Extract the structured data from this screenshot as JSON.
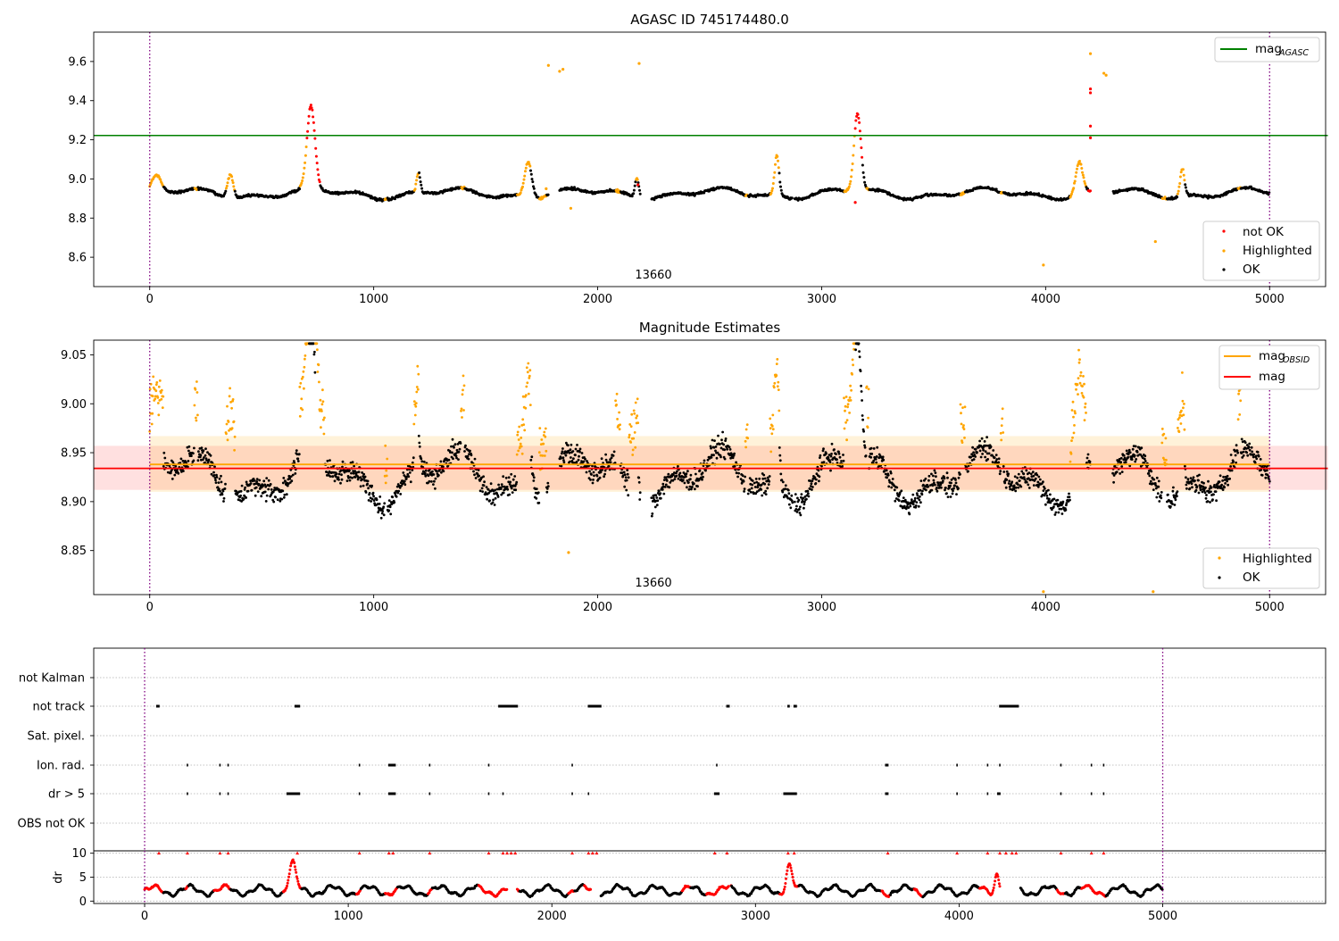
{
  "colors": {
    "ok": "#000000",
    "highlighted": "#ffa500",
    "not_ok": "#ff0000",
    "mag_agasc": "#008000",
    "mag_obsid": "#ffa500",
    "mag": "#ff0000",
    "obs_boundary": "#800080"
  },
  "chart_data": [
    {
      "type": "scatter",
      "title": "AGASC ID 745174480.0",
      "xlim": [
        -250,
        5250
      ],
      "ylim": [
        8.45,
        9.75
      ],
      "xticks": [
        0,
        1000,
        2000,
        3000,
        4000,
        5000
      ],
      "xtick_labels": [
        "0",
        "1000",
        "2000",
        "3000",
        "4000",
        "5000"
      ],
      "yticks": [
        8.6,
        8.8,
        9.0,
        9.2,
        9.4,
        9.6
      ],
      "ytick_labels": [
        "8.6",
        "8.8",
        "9.0",
        "9.2",
        "9.4",
        "9.6"
      ],
      "obsid_label": "13660",
      "obs_boundaries": [
        0,
        5000
      ],
      "hlines": [
        {
          "name": "mag_AGASC",
          "y": 9.222,
          "xmax": 5260
        }
      ],
      "legend_lines": [
        {
          "label": "mag",
          "sub": "AGASC"
        }
      ],
      "legend_points": [
        "not OK",
        "Highlighted",
        "OK"
      ],
      "series": [
        {
          "name": "OK",
          "curve": "baseline",
          "x": [
            0,
            5000
          ]
        },
        {
          "name": "Highlighted",
          "segments": [
            [
              0,
              60
            ],
            [
              200,
              215
            ],
            [
              340,
              380
            ],
            [
              670,
              710
            ],
            [
              1050,
              1060
            ],
            [
              1180,
              1200
            ],
            [
              1390,
              1405
            ],
            [
              1640,
              1700
            ],
            [
              1740,
              1770
            ],
            [
              2080,
              2100
            ],
            [
              2170,
              2180
            ],
            [
              2660,
              2670
            ],
            [
              2770,
              2810
            ],
            [
              3100,
              3150
            ],
            [
              3200,
              3210
            ],
            [
              3620,
              3640
            ],
            [
              3800,
              3810
            ],
            [
              4110,
              4180
            ],
            [
              4520,
              4540
            ],
            [
              4590,
              4620
            ],
            [
              4860,
              4870
            ]
          ]
        },
        {
          "name": "not OK",
          "segments": [
            [
              700,
              760
            ],
            [
              3150,
              3180
            ],
            [
              4190,
              4200
            ]
          ]
        }
      ],
      "outliers": [
        {
          "x": 1780,
          "y": 9.58,
          "s": "Highlighted"
        },
        {
          "x": 1830,
          "y": 9.55,
          "s": "Highlighted"
        },
        {
          "x": 1845,
          "y": 9.56,
          "s": "Highlighted"
        },
        {
          "x": 2185,
          "y": 9.59,
          "s": "Highlighted"
        },
        {
          "x": 4200,
          "y": 9.64,
          "s": "Highlighted"
        },
        {
          "x": 4260,
          "y": 9.54,
          "s": "Highlighted"
        },
        {
          "x": 4270,
          "y": 9.53,
          "s": "Highlighted"
        },
        {
          "x": 4200,
          "y": 9.46,
          "s": "not OK"
        },
        {
          "x": 4200,
          "y": 9.44,
          "s": "not OK"
        },
        {
          "x": 4200,
          "y": 9.27,
          "s": "not OK"
        },
        {
          "x": 4200,
          "y": 9.21,
          "s": "not OK"
        },
        {
          "x": 3150,
          "y": 8.88,
          "s": "not OK"
        },
        {
          "x": 2180,
          "y": 8.97,
          "s": "not OK"
        },
        {
          "x": 3990,
          "y": 8.56,
          "s": "Highlighted"
        },
        {
          "x": 4490,
          "y": 8.68,
          "s": "Highlighted"
        },
        {
          "x": 1880,
          "y": 8.85,
          "s": "Highlighted"
        },
        {
          "x": 1770,
          "y": 8.95,
          "s": "Highlighted"
        }
      ]
    },
    {
      "type": "scatter",
      "title": "Magnitude Estimates",
      "xlim": [
        -250,
        5250
      ],
      "ylim": [
        8.805,
        9.065
      ],
      "xticks": [
        0,
        1000,
        2000,
        3000,
        4000,
        5000
      ],
      "xtick_labels": [
        "0",
        "1000",
        "2000",
        "3000",
        "4000",
        "5000"
      ],
      "yticks": [
        8.85,
        8.9,
        8.95,
        9.0,
        9.05
      ],
      "ytick_labels": [
        "8.85",
        "8.90",
        "8.95",
        "9.00",
        "9.05"
      ],
      "obsid_label": "13660",
      "obs_boundaries": [
        0,
        5000
      ],
      "hlines": [
        {
          "name": "mag_OBSID",
          "y": 8.938,
          "band": [
            8.91,
            8.967
          ],
          "xmin": 0,
          "xmax": 5000
        },
        {
          "name": "mag",
          "y": 8.934,
          "band": [
            8.912,
            8.957
          ],
          "xmin": -250,
          "xmax": 5260
        }
      ],
      "legend_lines": [
        {
          "label": "mag",
          "sub": "OBSID"
        },
        {
          "label": "mag",
          "sub": ""
        }
      ],
      "legend_points": [
        "Highlighted",
        "OK"
      ],
      "series": [
        {
          "name": "OK",
          "curve": "baseline",
          "x": [
            0,
            5000
          ]
        },
        {
          "name": "Highlighted",
          "segments": [
            [
              0,
              60
            ],
            [
              200,
              215
            ],
            [
              340,
              380
            ],
            [
              670,
              710
            ],
            [
              740,
              780
            ],
            [
              1050,
              1060
            ],
            [
              1180,
              1200
            ],
            [
              1390,
              1405
            ],
            [
              1640,
              1700
            ],
            [
              1740,
              1770
            ],
            [
              2080,
              2100
            ],
            [
              2140,
              2180
            ],
            [
              2660,
              2670
            ],
            [
              2770,
              2810
            ],
            [
              3100,
              3150
            ],
            [
              3200,
              3210
            ],
            [
              3620,
              3640
            ],
            [
              3800,
              3810
            ],
            [
              4110,
              4180
            ],
            [
              4520,
              4540
            ],
            [
              4590,
              4620
            ],
            [
              4860,
              4870
            ]
          ]
        }
      ],
      "outliers": [
        {
          "x": 1870,
          "y": 8.848,
          "s": "Highlighted"
        },
        {
          "x": 3990,
          "y": 8.808,
          "s": "Highlighted"
        },
        {
          "x": 4480,
          "y": 8.808,
          "s": "Highlighted"
        }
      ]
    },
    {
      "type": "scatter",
      "title": "",
      "xlim": [
        -250,
        5800
      ],
      "flags": [
        "not Kalman",
        "not track",
        "Sat. pixel.",
        "Ion. rad.",
        "dr > 5",
        "OBS not OK"
      ],
      "flag_events": {
        "not Kalman": [],
        "not track": [
          [
            60,
            70
          ],
          [
            740,
            760
          ],
          [
            1740,
            1830
          ],
          [
            2180,
            2240
          ],
          [
            2860,
            2870
          ],
          [
            3160,
            3165
          ],
          [
            3190,
            3200
          ],
          [
            4200,
            4290
          ]
        ],
        "Sat. pixel.": [],
        "Ion. rad.": [
          [
            210,
            210
          ],
          [
            370,
            370
          ],
          [
            410,
            410
          ],
          [
            1055,
            1055
          ],
          [
            1200,
            1230
          ],
          [
            1400,
            1400
          ],
          [
            1690,
            1690
          ],
          [
            2100,
            2100
          ],
          [
            2810,
            2810
          ],
          [
            3640,
            3650
          ],
          [
            3990,
            3990
          ],
          [
            4140,
            4140
          ],
          [
            4200,
            4200
          ],
          [
            4500,
            4500
          ],
          [
            4650,
            4650
          ],
          [
            4710,
            4710
          ]
        ],
        "dr > 5": [
          [
            210,
            210
          ],
          [
            370,
            370
          ],
          [
            410,
            410
          ],
          [
            700,
            760
          ],
          [
            1055,
            1055
          ],
          [
            1200,
            1230
          ],
          [
            1400,
            1400
          ],
          [
            1690,
            1690
          ],
          [
            1760,
            1760
          ],
          [
            2100,
            2100
          ],
          [
            2180,
            2180
          ],
          [
            2800,
            2820
          ],
          [
            3140,
            3200
          ],
          [
            3640,
            3650
          ],
          [
            3990,
            3990
          ],
          [
            4140,
            4140
          ],
          [
            4190,
            4200
          ],
          [
            4500,
            4500
          ],
          [
            4650,
            4650
          ],
          [
            4710,
            4710
          ]
        ],
        "OBS not OK": []
      },
      "obs_boundaries": [
        0,
        5000
      ]
    },
    {
      "type": "scatter",
      "title": "",
      "xlim": [
        -250,
        5800
      ],
      "ylim": [
        -0.5,
        10.5
      ],
      "xticks": [
        0,
        1000,
        2000,
        3000,
        4000,
        5000
      ],
      "xtick_labels": [
        "0",
        "1000",
        "2000",
        "3000",
        "4000",
        "5000"
      ],
      "yticks": [
        0,
        5,
        10
      ],
      "ytick_labels": [
        "0",
        "5",
        "10"
      ],
      "ylabel": "dr",
      "obs_boundaries": [
        0,
        5000
      ],
      "series": [
        {
          "name": "OK",
          "curve": "dr"
        },
        {
          "name": "not OK",
          "segments": [
            [
              0,
              90
            ],
            [
              200,
              215
            ],
            [
              340,
              420
            ],
            [
              680,
              770
            ],
            [
              1040,
              1060
            ],
            [
              1180,
              1240
            ],
            [
              1390,
              1410
            ],
            [
              1640,
              1840
            ],
            [
              2080,
              2110
            ],
            [
              2160,
              2240
            ],
            [
              2640,
              2680
            ],
            [
              2760,
              2880
            ],
            [
              3120,
              3210
            ],
            [
              3620,
              3660
            ],
            [
              3780,
              3820
            ],
            [
              4100,
              4300
            ],
            [
              4480,
              4520
            ],
            [
              4600,
              4720
            ]
          ]
        }
      ],
      "clipped_points": [
        [
          70,
          10
        ],
        [
          210,
          10
        ],
        [
          370,
          10
        ],
        [
          410,
          10
        ],
        [
          750,
          10
        ],
        [
          1055,
          10
        ],
        [
          1200,
          10
        ],
        [
          1220,
          10
        ],
        [
          1400,
          10
        ],
        [
          1690,
          10
        ],
        [
          1760,
          10
        ],
        [
          1780,
          10
        ],
        [
          1800,
          10
        ],
        [
          1820,
          10
        ],
        [
          2100,
          10
        ],
        [
          2180,
          10
        ],
        [
          2200,
          10
        ],
        [
          2220,
          10
        ],
        [
          2800,
          10
        ],
        [
          2860,
          10
        ],
        [
          3160,
          10
        ],
        [
          3190,
          10
        ],
        [
          3650,
          10
        ],
        [
          3990,
          10
        ],
        [
          4140,
          10
        ],
        [
          4200,
          10
        ],
        [
          4230,
          10
        ],
        [
          4260,
          10
        ],
        [
          4280,
          10
        ],
        [
          4500,
          10
        ],
        [
          4650,
          10
        ],
        [
          4710,
          10
        ]
      ]
    }
  ]
}
